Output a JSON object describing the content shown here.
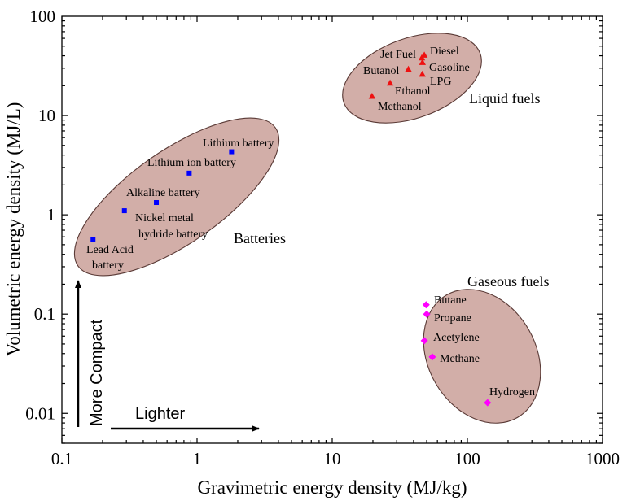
{
  "chart_data": {
    "type": "scatter",
    "title": "",
    "xlabel": "Gravimetric energy density (MJ/kg)",
    "ylabel": "Volumetric energy density (MJ/L)",
    "xscale": "log",
    "yscale": "log",
    "xlim": [
      0.1,
      1000
    ],
    "ylim": [
      0.005,
      100
    ],
    "xticks": [
      {
        "value": 0.1,
        "label": "0.1"
      },
      {
        "value": 1,
        "label": "1"
      },
      {
        "value": 10,
        "label": "10"
      },
      {
        "value": 100,
        "label": "100"
      },
      {
        "value": 1000,
        "label": "1000"
      }
    ],
    "yticks": [
      {
        "value": 0.01,
        "label": "0.01"
      },
      {
        "value": 0.1,
        "label": "0.1"
      },
      {
        "value": 1,
        "label": "1"
      },
      {
        "value": 10,
        "label": "10"
      },
      {
        "value": 100,
        "label": "100"
      }
    ],
    "groups": [
      {
        "name": "Batteries",
        "color": "#0000ff",
        "marker": "square",
        "fill": "#d2aea8",
        "stroke": "#5a3a36"
      },
      {
        "name": "Liquid fuels",
        "color": "#ee1111",
        "marker": "triangle",
        "fill": "#d2aea8",
        "stroke": "#5a3a36"
      },
      {
        "name": "Gaseous fuels",
        "color": "#ff00ff",
        "marker": "diamond",
        "fill": "#d2aea8",
        "stroke": "#5a3a36"
      }
    ],
    "series": [
      {
        "name": "Batteries",
        "points": [
          {
            "label": "Lead Acid battery",
            "x": 0.17,
            "y": 0.56
          },
          {
            "label": "Nickel metal hydride battery",
            "x": 0.29,
            "y": 1.1
          },
          {
            "label": "Alkaline battery",
            "x": 0.5,
            "y": 1.33
          },
          {
            "label": "Lithium ion battery",
            "x": 0.875,
            "y": 2.63
          },
          {
            "label": "Lithium battery",
            "x": 1.8,
            "y": 4.32
          }
        ]
      },
      {
        "name": "Liquid fuels",
        "points": [
          {
            "label": "Methanol",
            "x": 19.7,
            "y": 15.6
          },
          {
            "label": "Ethanol",
            "x": 26.8,
            "y": 21.2
          },
          {
            "label": "Butanol",
            "x": 36.6,
            "y": 29.2
          },
          {
            "label": "Jet Fuel",
            "x": 46.0,
            "y": 38.0
          },
          {
            "label": "Diesel",
            "x": 48.0,
            "y": 40.5
          },
          {
            "label": "Gasoline",
            "x": 46.5,
            "y": 34.2
          },
          {
            "label": "LPG",
            "x": 46.4,
            "y": 26.0
          }
        ]
      },
      {
        "name": "Gaseous fuels",
        "points": [
          {
            "label": "Butane",
            "x": 49.5,
            "y": 0.124
          },
          {
            "label": "Propane",
            "x": 50.0,
            "y": 0.1
          },
          {
            "label": "Acetylene",
            "x": 48.0,
            "y": 0.054
          },
          {
            "label": "Methane",
            "x": 55.0,
            "y": 0.037
          },
          {
            "label": "Hydrogen",
            "x": 141,
            "y": 0.0128
          }
        ]
      }
    ],
    "annotations": [
      {
        "id": "lighter",
        "text": "Lighter"
      },
      {
        "id": "more_compact",
        "text": "More Compact"
      }
    ]
  }
}
